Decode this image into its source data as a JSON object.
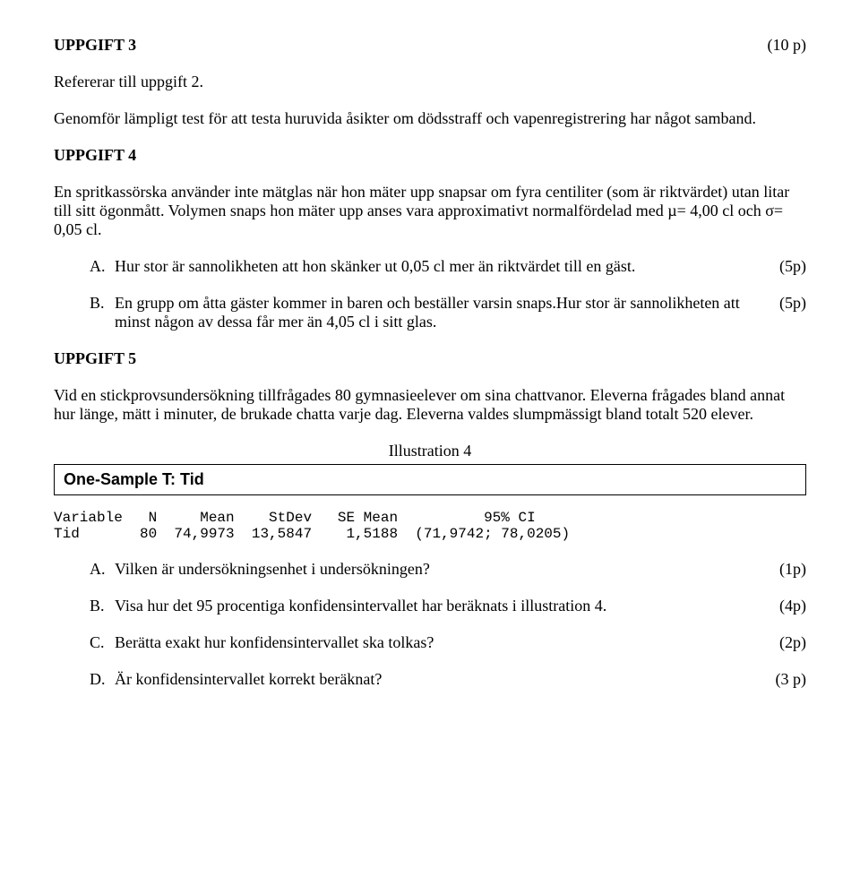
{
  "u3": {
    "title": "UPPGIFT 3",
    "points": "(10 p)",
    "ref": "Refererar till uppgift 2.",
    "body": "Genomför lämpligt test för att testa huruvida åsikter om dödsstraff och vapenregistrering har något samband."
  },
  "u4": {
    "title": "UPPGIFT 4",
    "body": "En spritkassörska använder inte mätglas när hon mäter upp snapsar om fyra centiliter (som är riktvärdet) utan litar till sitt ögonmått. Volymen snaps hon mäter upp anses vara approximativt normalfördelad med µ= 4,00 cl och σ= 0,05 cl.",
    "a": {
      "letter": "A.",
      "text": "Hur stor är sannolikheten att hon skänker ut 0,05 cl mer än riktvärdet till en gäst.",
      "points": "(5p)"
    },
    "b": {
      "letter": "B.",
      "text": "En grupp om åtta gäster kommer in baren och beställer varsin snaps.Hur stor är sannolikheten att minst någon av dessa får mer än 4,05 cl i sitt glas.",
      "points": "(5p)"
    }
  },
  "u5": {
    "title": "UPPGIFT 5",
    "body": "Vid en stickprovsundersökning tillfrågades 80 gymnasieelever om sina chattvanor. Eleverna frågades bland annat hur länge, mätt i minuter, de brukade chatta varje dag. Eleverna valdes slumpmässigt bland totalt 520 elever.",
    "illus_label": "Illustration 4",
    "box_title": "One-Sample T: Tid",
    "stats_header": "Variable   N     Mean    StDev   SE Mean          95% CI",
    "stats_row": "Tid       80  74,9973  13,5847    1,5188  (71,9742; 78,0205)",
    "a": {
      "letter": "A.",
      "text": "Vilken är undersökningsenhet i undersökningen?",
      "points": "(1p)"
    },
    "b": {
      "letter": "B.",
      "text": "Visa hur det 95 procentiga konfidensintervallet har beräknats i illustration 4.",
      "points": "(4p)"
    },
    "c": {
      "letter": "C.",
      "text": "Berätta exakt hur konfidensintervallet ska tolkas?",
      "points": "(2p)"
    },
    "d": {
      "letter": "D.",
      "text": "Är konfidensintervallet korrekt beräknat?",
      "points": "(3 p)"
    }
  }
}
